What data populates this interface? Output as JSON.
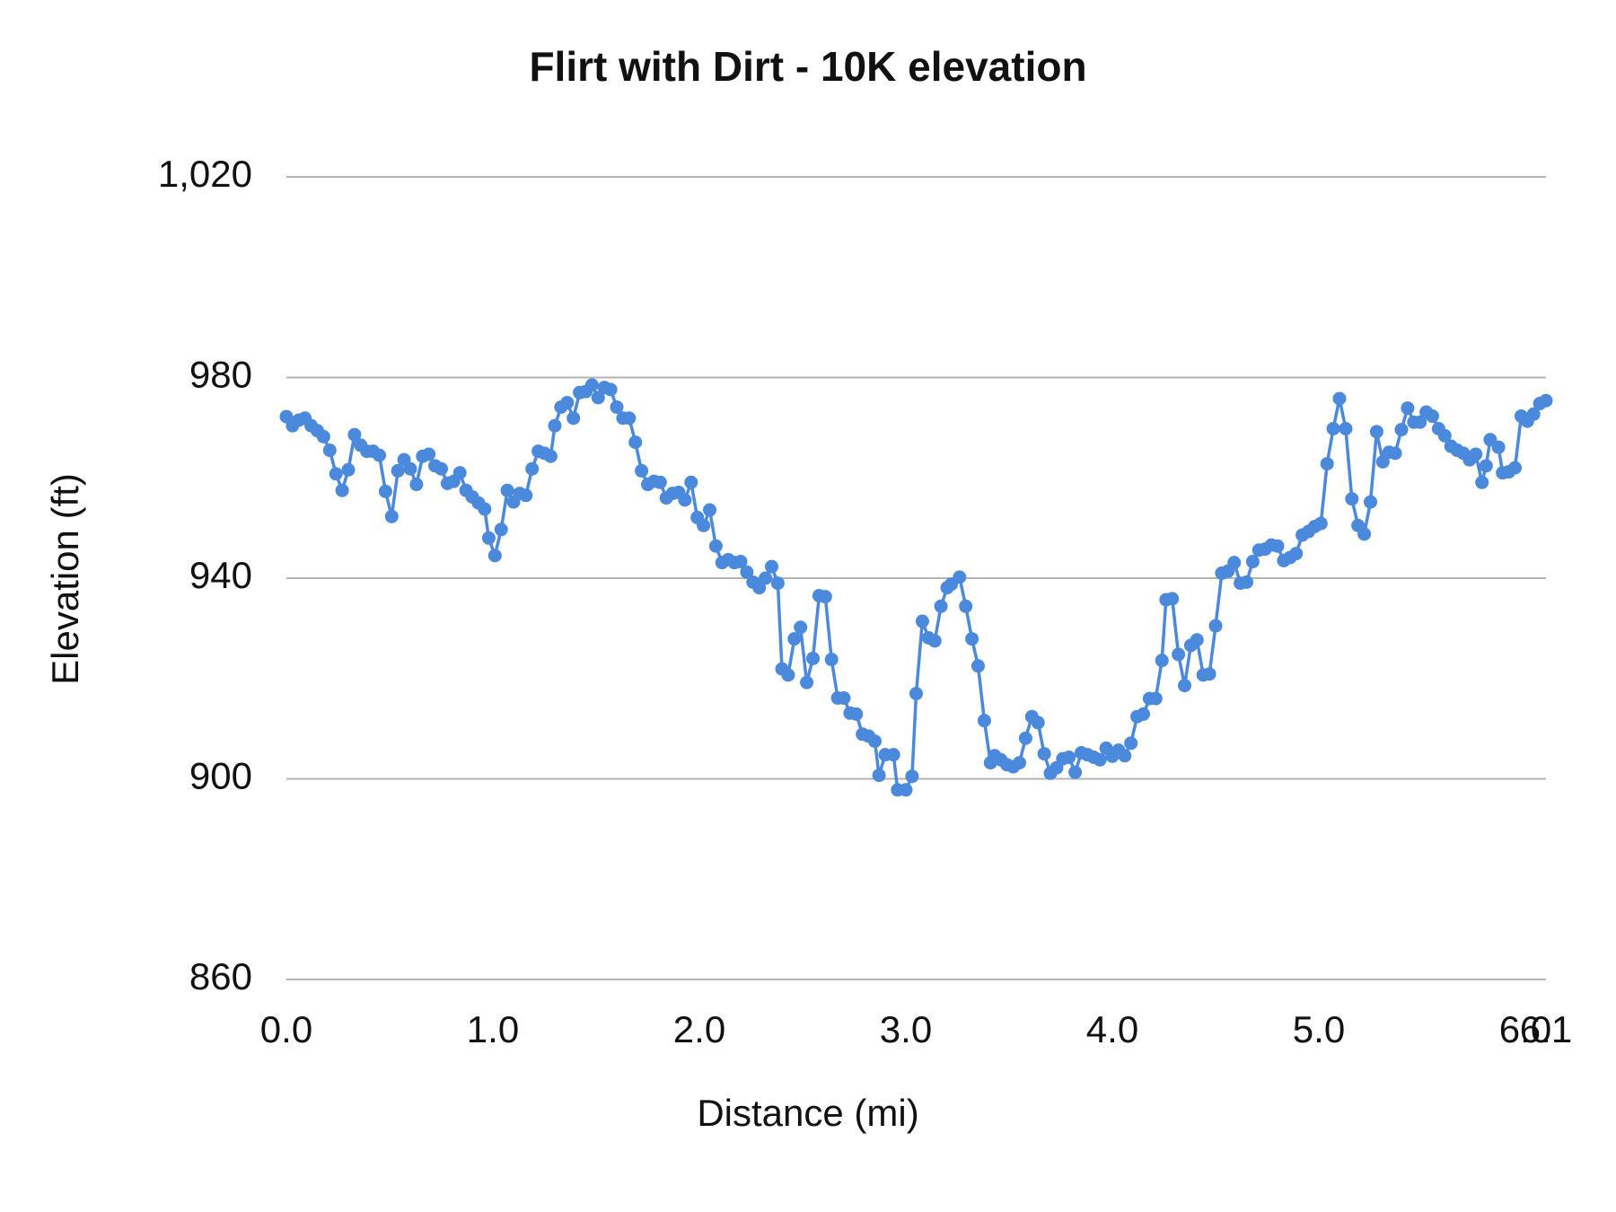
{
  "chart_data": {
    "type": "line",
    "title": "Flirt with Dirt - 10K elevation",
    "x_label": "Distance (mi)",
    "y_label": "Elevation (ft)",
    "xlim": [
      0,
      6.1
    ],
    "xticks": [
      {
        "value": 0,
        "label": "0.0"
      },
      {
        "value": 1,
        "label": "1.0"
      },
      {
        "value": 2,
        "label": "2.0"
      },
      {
        "value": 3,
        "label": "3.0"
      },
      {
        "value": 4,
        "label": "4.0"
      },
      {
        "value": 5,
        "label": "5.0"
      },
      {
        "value": 6,
        "label": "6.0"
      },
      6.1
    ],
    "ylim": [
      860,
      1020
    ],
    "yticks": [
      860,
      900,
      940,
      980,
      {
        "value": 1020,
        "label": "1,020"
      }
    ],
    "grid": true,
    "x": [
      0,
      0.03,
      0.06,
      0.09,
      0.12,
      0.15,
      0.18,
      0.21,
      0.24,
      0.27,
      0.3,
      0.33,
      0.36,
      0.39,
      0.42,
      0.45,
      0.48,
      0.51,
      0.54,
      0.57,
      0.6,
      0.63,
      0.66,
      0.69,
      0.72,
      0.75,
      0.78,
      0.81,
      0.84,
      0.87,
      0.9,
      0.93,
      0.96,
      0.98,
      1.01,
      1.04,
      1.07,
      1.1,
      1.13,
      1.16,
      1.19,
      1.22,
      1.25,
      1.28,
      1.3,
      1.33,
      1.36,
      1.39,
      1.42,
      1.45,
      1.48,
      1.51,
      1.54,
      1.57,
      1.6,
      1.63,
      1.66,
      1.69,
      1.72,
      1.75,
      1.78,
      1.81,
      1.84,
      1.87,
      1.9,
      1.93,
      1.96,
      1.99,
      2.02,
      2.05,
      2.08,
      2.11,
      2.14,
      2.17,
      2.2,
      2.23,
      2.26,
      2.29,
      2.32,
      2.35,
      2.38,
      2.4,
      2.43,
      2.46,
      2.49,
      2.52,
      2.55,
      2.58,
      2.61,
      2.64,
      2.67,
      2.7,
      2.73,
      2.76,
      2.79,
      2.82,
      2.85,
      2.87,
      2.9,
      2.94,
      2.96,
      3.0,
      3.03,
      3.05,
      3.08,
      3.11,
      3.14,
      3.17,
      3.2,
      3.22,
      3.26,
      3.29,
      3.32,
      3.35,
      3.38,
      3.41,
      3.43,
      3.46,
      3.49,
      3.52,
      3.55,
      3.58,
      3.61,
      3.64,
      3.67,
      3.7,
      3.73,
      3.76,
      3.79,
      3.82,
      3.85,
      3.88,
      3.91,
      3.94,
      3.97,
      4.0,
      4.03,
      4.06,
      4.09,
      4.12,
      4.15,
      4.18,
      4.21,
      4.24,
      4.26,
      4.29,
      4.32,
      4.35,
      4.38,
      4.41,
      4.44,
      4.47,
      4.5,
      4.53,
      4.56,
      4.59,
      4.62,
      4.65,
      4.68,
      4.71,
      4.74,
      4.77,
      4.8,
      4.83,
      4.86,
      4.89,
      4.92,
      4.95,
      4.98,
      5.01,
      5.04,
      5.07,
      5.1,
      5.13,
      5.16,
      5.19,
      5.22,
      5.25,
      5.28,
      5.31,
      5.34,
      5.37,
      5.4,
      5.43,
      5.46,
      5.49,
      5.52,
      5.55,
      5.58,
      5.61,
      5.64,
      5.67,
      5.7,
      5.73,
      5.76,
      5.79,
      5.81,
      5.83,
      5.87,
      5.89,
      5.92,
      5.95,
      5.98,
      6.01,
      6.04,
      6.07,
      6.1
    ],
    "series": [
      {
        "name": "Elevation (ft)",
        "color": "#4a89dc",
        "values": [
          972.2,
          970.4,
          971.5,
          971.9,
          970.4,
          969.4,
          968.2,
          965.5,
          960.8,
          957.5,
          961.6,
          968.6,
          966.5,
          965.3,
          965.3,
          964.5,
          957.3,
          952.3,
          961.4,
          963.6,
          961.8,
          958.7,
          964.3,
          964.7,
          962.4,
          961.8,
          958.9,
          959.3,
          961.0,
          957.5,
          956.2,
          955.0,
          953.8,
          948.0,
          944.5,
          949.7,
          957.5,
          955.2,
          956.9,
          956.5,
          961.8,
          965.3,
          964.9,
          964.3,
          970.4,
          974.1,
          975.0,
          971.9,
          977.0,
          977.2,
          978.5,
          976.0,
          978.0,
          977.6,
          974.1,
          971.9,
          971.9,
          967.1,
          961.4,
          958.7,
          959.3,
          959.1,
          956.0,
          956.9,
          957.1,
          955.6,
          959.1,
          952.1,
          950.5,
          953.6,
          946.4,
          943.1,
          943.7,
          943.1,
          943.3,
          941.2,
          939.2,
          938.1,
          940.0,
          942.3,
          939.0,
          921.9,
          920.7,
          927.9,
          930.2,
          919.2,
          924.0,
          936.5,
          936.3,
          923.8,
          916.1,
          916.1,
          913.1,
          912.9,
          908.9,
          908.5,
          907.5,
          900.7,
          904.8,
          904.8,
          897.8,
          897.8,
          900.5,
          917.0,
          931.4,
          928.1,
          927.5,
          934.4,
          938.1,
          938.8,
          940.2,
          934.4,
          927.9,
          922.5,
          911.6,
          903.2,
          904.6,
          903.8,
          902.8,
          902.4,
          903.2,
          908.1,
          912.4,
          911.2,
          905.0,
          901.1,
          902.2,
          904.0,
          904.3,
          901.3,
          905.2,
          904.8,
          904.3,
          903.8,
          906.1,
          904.5,
          905.7,
          904.6,
          907.1,
          912.4,
          912.9,
          916.0,
          916.0,
          923.6,
          935.7,
          935.9,
          924.8,
          918.6,
          926.6,
          927.7,
          920.7,
          920.9,
          930.5,
          941.0,
          941.4,
          943.1,
          939.0,
          939.2,
          943.3,
          945.6,
          945.8,
          946.6,
          946.4,
          943.5,
          944.1,
          944.9,
          948.6,
          949.3,
          950.3,
          950.9,
          962.8,
          969.8,
          975.8,
          969.8,
          955.8,
          950.5,
          948.8,
          955.2,
          969.2,
          963.2,
          965.1,
          964.9,
          969.6,
          973.9,
          971.1,
          971.1,
          973.1,
          972.3,
          969.8,
          968.4,
          966.3,
          965.5,
          964.9,
          963.6,
          964.7,
          959.1,
          962.4,
          967.6,
          966.1,
          961.0,
          961.2,
          962.0,
          972.3,
          971.3,
          972.7,
          974.8,
          975.4
        ]
      }
    ]
  }
}
